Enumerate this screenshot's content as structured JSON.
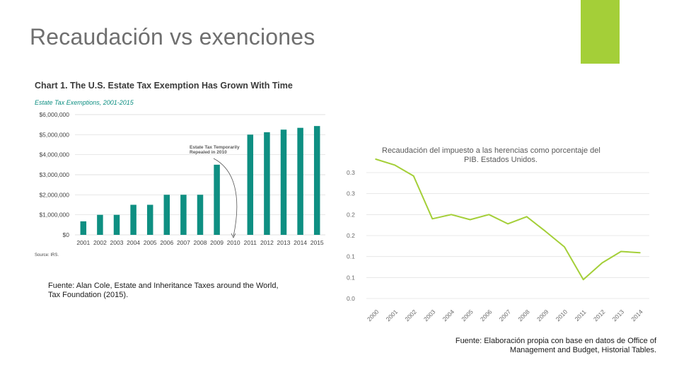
{
  "slide": {
    "title": "Recaudación vs exenciones",
    "accent_color": "#a4cf38"
  },
  "sources": {
    "left_line1": "Fuente: Alan Cole, Estate and Inheritance Taxes around the World,",
    "left_line2": "Tax Foundation (2015).",
    "right_line1": "Fuente: Elaboración propia con base en datos de Office of",
    "right_line2": "Management and Budget, Historial Tables."
  },
  "chart_data": [
    {
      "type": "bar",
      "title": "Chart 1. The U.S. Estate Tax Exemption Has Grown With Time",
      "subtitle": "Estate Tax Exemptions, 2001-2015",
      "source_note": "Source: IRS.",
      "annotation_line1": "Estate Tax Temporarily",
      "annotation_line2": "Repealed in 2010",
      "color": "#0e8f82",
      "categories": [
        "2001",
        "2002",
        "2003",
        "2004",
        "2005",
        "2006",
        "2007",
        "2008",
        "2009",
        "2010",
        "2011",
        "2012",
        "2013",
        "2014",
        "2015"
      ],
      "values": [
        675000,
        1000000,
        1000000,
        1500000,
        1500000,
        2000000,
        2000000,
        2000000,
        3500000,
        0,
        5000000,
        5120000,
        5250000,
        5340000,
        5430000
      ],
      "ytick_values": [
        0,
        1000000,
        2000000,
        3000000,
        4000000,
        5000000,
        6000000
      ],
      "ytick_labels": [
        "$0",
        "$1,000,000",
        "$2,000,000",
        "$3,000,000",
        "$4,000,000",
        "$5,000,000",
        "$6,000,000"
      ],
      "ylim": [
        0,
        6000000
      ],
      "xlabel": "",
      "ylabel": ""
    },
    {
      "type": "line",
      "title_line1": "Recaudación del impuesto a las herencias como porcentaje del",
      "title_line2": "PIB. Estados Unidos.",
      "color": "#a4cf38",
      "x": [
        "2000",
        "2001",
        "2002",
        "2003",
        "2004",
        "2005",
        "2006",
        "2007",
        "2008",
        "2009",
        "2010",
        "2011",
        "2012",
        "2013",
        "2014"
      ],
      "values": [
        0.332,
        0.318,
        0.292,
        0.19,
        0.2,
        0.188,
        0.2,
        0.178,
        0.195,
        0.16,
        0.123,
        0.045,
        0.085,
        0.112,
        0.109
      ],
      "ytick_values": [
        0,
        0.05,
        0.1,
        0.15,
        0.2,
        0.25,
        0.3
      ],
      "ytick_labels": [
        "0.0",
        "0.1",
        "0.1",
        "0.2",
        "0.2",
        "0.3",
        "0.3"
      ],
      "ylim": [
        0,
        0.3
      ],
      "grid": true,
      "xlabel": "",
      "ylabel": ""
    }
  ]
}
